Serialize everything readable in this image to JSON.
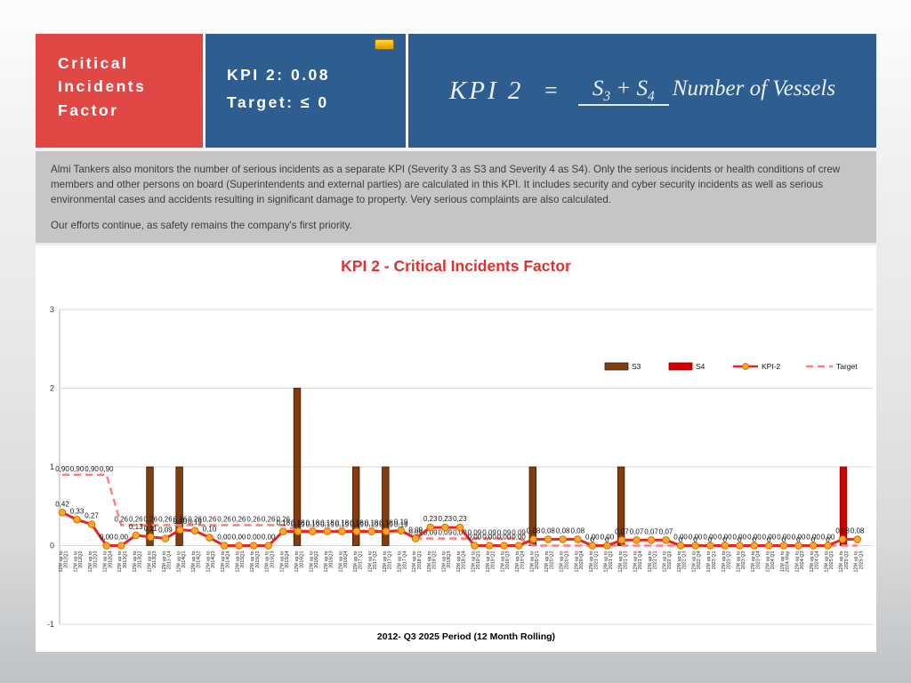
{
  "header": {
    "title_lines": [
      "Critical",
      "Incidents",
      "Factor"
    ],
    "kpi_value_line": "KPI 2: 0.08",
    "kpi_target_line": "Target: ≤ 0",
    "panel_red_color": "#e04745",
    "panel_blue_color": "#2e5e90",
    "marker_chip_color": "#f2b200",
    "formula": {
      "lhs": "KPI 2",
      "equals": "=",
      "num_left": "S",
      "num_left_sub": "3",
      "plus": " + ",
      "num_right": "S",
      "num_right_sub": "4",
      "denominator": "Number of Vessels"
    }
  },
  "description": {
    "paragraph1": "Almi Tankers also monitors the number of serious incidents as a separate KPI (Severity 3 as S3 and Severity 4 as S4). Only the serious incidents or health conditions of crew members and other persons on board (Superintendents and external parties) are calculated in this KPI. It includes security and cyber security incidents as well as serious environmental cases and accidents resulting in significant damage to property. Very serious complaints are also calculated.",
    "paragraph2": "Our efforts continue, as safety remains the company's first priority."
  },
  "chart_data": {
    "type": "bar",
    "title": "KPI 2 - Critical Incidents Factor",
    "title_color": "#e0312e",
    "xlabel": "2012- Q3 2025 Period (12 Month Rolling)",
    "ylabel": "",
    "ylim": [
      -1,
      3
    ],
    "yticks": [
      -1,
      0,
      1,
      2,
      3
    ],
    "grid": true,
    "legend_position": "top-right",
    "decimal_separator": ",",
    "categories": [
      "12M up to 2012Q1",
      "12M up to 2012Q2",
      "12M up to 2012Q3",
      "12M up to 2012Q4",
      "12M up to 2013Q1",
      "12M up to 2013Q2",
      "12M up to 2013Q3",
      "12M up to 2013 Q4",
      "12M up to 2014Q1",
      "12M up to 2014Q2",
      "12M up to 2014Q3",
      "12M up to 2014Q4",
      "12M up to 2015Q1",
      "12M up to 2015Q2",
      "12M up to 2015Q3",
      "12M up to 2015Q4",
      "12M up to 2016Q1",
      "12M up to 2016Q2",
      "12M up to 2016Q3",
      "12M up to 2016Q4",
      "12M up to 2017 Q1",
      "12M up to 2017 Q2",
      "12M up to 2017 Q3",
      "12M up to 2017 Q4",
      "12M up to 2018 Q1",
      "12M up to 2018 Q2",
      "12M up to 2018Q3",
      "12M up to 2018 Q4",
      "12M up to 2019 Q1",
      "12M up to 2019 Q2",
      "12M up to 2019 Q3",
      "12M up to 2019 Q4",
      "12M up to 2020 Q1",
      "12M up to 2020 Q2",
      "12M up to 2020 Q3",
      "12M up to 2020 Q4",
      "12M up to 2021 Q1",
      "12M up to 2021 Q2",
      "12M up to 2021 Q3",
      "12M up to 2021 Q4",
      "12M up to 2022 Q1",
      "12M up to 2022 Q2",
      "12M up to 2022 Q3",
      "12M up to 2022 Q4",
      "12M up to 2023 Q1",
      "12M up to 2023 Q2",
      "12M up to 2023 Q3",
      "12M up to 2023 Q4",
      "12M up to 2024 Q1",
      "11M up to 2024 May",
      "12M up to 2024 Q3",
      "12M up to 2024 Q4",
      "12M up to 2025 Q1",
      "12M up to 2025 Q2",
      "12M up to 2025 Q3"
    ],
    "series": [
      {
        "name": "S3",
        "type": "bar",
        "color": "#833c0b",
        "border": "#3b1a05",
        "values": [
          0,
          0,
          0,
          0,
          0,
          0,
          1,
          0,
          1,
          0,
          0,
          0,
          0,
          0,
          0,
          0,
          2,
          0,
          0,
          0,
          1,
          0,
          1,
          0,
          0,
          0,
          0,
          0,
          0,
          0,
          0,
          0,
          1,
          0,
          0,
          0,
          0,
          0,
          1,
          0,
          0,
          0,
          0,
          0,
          0,
          0,
          0,
          0,
          0,
          0,
          0,
          0,
          0,
          0,
          0
        ]
      },
      {
        "name": "S4",
        "type": "bar",
        "color": "#d40000",
        "border": "#7f0000",
        "values": [
          0,
          0,
          0,
          0,
          0,
          0,
          0,
          0,
          0,
          0,
          0,
          0,
          0,
          0,
          0,
          0,
          0,
          0,
          0,
          0,
          0,
          0,
          0,
          0,
          0,
          0,
          0,
          0,
          0,
          0,
          0,
          0,
          0,
          0,
          0,
          0,
          0,
          0,
          0,
          0,
          0,
          0,
          0,
          0,
          0,
          0,
          0,
          0,
          0,
          0,
          0,
          0,
          0,
          1,
          0
        ]
      },
      {
        "name": "KPI-2",
        "type": "line",
        "color": "#e8251f",
        "marker_fill": "#ffa728",
        "marker_border": "#d86a00",
        "values": [
          0.42,
          0.33,
          0.27,
          0,
          0,
          0.13,
          0.11,
          0.09,
          0.2,
          0.19,
          0.1,
          0,
          0,
          0,
          0,
          0.18,
          0.18,
          0.18,
          0.18,
          0.18,
          0.18,
          0.18,
          0.18,
          0.19,
          0.09,
          0.23,
          0.23,
          0.23,
          0,
          0,
          0,
          0,
          0.08,
          0.08,
          0.08,
          0.08,
          0,
          0,
          0.07,
          0.07,
          0.07,
          0.07,
          0,
          0,
          0,
          0,
          0,
          0,
          0,
          0,
          0,
          0,
          0,
          0.08,
          0.08
        ]
      },
      {
        "name": "Target",
        "type": "dashed-line",
        "color": "#ff7c80",
        "values": [
          0.9,
          0.9,
          0.9,
          0.9,
          0.26,
          0.26,
          0.26,
          0.26,
          0.26,
          0.26,
          0.26,
          0.26,
          0.26,
          0.26,
          0.26,
          0.26,
          0.19,
          0.19,
          0.19,
          0.19,
          0.19,
          0.19,
          0.19,
          0.19,
          0.09,
          0.09,
          0.09,
          0.09,
          0.09,
          0.09,
          0.09,
          0.09,
          0,
          0,
          0,
          0,
          0,
          0,
          0,
          0,
          0,
          0,
          0,
          0,
          0,
          0,
          0,
          0,
          0,
          0,
          0,
          0,
          0,
          0,
          0
        ]
      }
    ]
  }
}
